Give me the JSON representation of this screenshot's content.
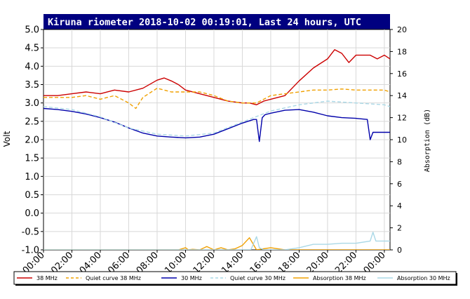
{
  "chart_data": {
    "type": "line",
    "title": "Kiruna riometer 2018-10-02 00:19:01, Last 24 hours, UTC",
    "ylabel": "Volt",
    "y2label": "Absorption (dB)",
    "xlabel": "",
    "ylim": [
      -1.0,
      5.0
    ],
    "y2lim": [
      0,
      20
    ],
    "xlim": [
      0,
      24.4
    ],
    "x_ticks": [
      "00:00",
      "02:00",
      "04:00",
      "06:00",
      "08:00",
      "10:00",
      "12:00",
      "14:00",
      "16:00",
      "18:00",
      "20:00",
      "22:00",
      "00:00"
    ],
    "y_ticks": [
      "-1.0",
      "-0.5",
      "0.0",
      "0.5",
      "1.0",
      "1.5",
      "2.0",
      "2.5",
      "3.0",
      "3.5",
      "4.0",
      "4.5",
      "5.0"
    ],
    "y2_ticks": [
      "0",
      "2",
      "4",
      "6",
      "8",
      "10",
      "12",
      "14",
      "16",
      "18",
      "20"
    ],
    "grid": true,
    "legend_position": "bottom",
    "series": [
      {
        "name": "38 MHz",
        "color": "#cc0000",
        "style": "solid",
        "axis": "left",
        "x": [
          0,
          1,
          2,
          3,
          4,
          5,
          6,
          7,
          8,
          8.5,
          9,
          9.5,
          10,
          11,
          12,
          13,
          14,
          14.5,
          15,
          15.5,
          16,
          17,
          18,
          19,
          20,
          20.5,
          21,
          21.5,
          22,
          23,
          23.5,
          24,
          24.4
        ],
        "y": [
          3.2,
          3.2,
          3.25,
          3.3,
          3.25,
          3.35,
          3.3,
          3.4,
          3.62,
          3.68,
          3.6,
          3.5,
          3.35,
          3.25,
          3.15,
          3.05,
          3.0,
          3.0,
          2.95,
          3.05,
          3.1,
          3.2,
          3.6,
          3.95,
          4.2,
          4.45,
          4.35,
          4.1,
          4.3,
          4.3,
          4.2,
          4.3,
          4.2
        ]
      },
      {
        "name": "Quiet curve 38 MHz",
        "color": "#f0a000",
        "style": "dashed",
        "axis": "left",
        "x": [
          0,
          1,
          2,
          3,
          4,
          5,
          6,
          6.5,
          7,
          8,
          9,
          10,
          11,
          12,
          13,
          14,
          15,
          16,
          17,
          18,
          19,
          20,
          21,
          22,
          23,
          24,
          24.4
        ],
        "y": [
          3.15,
          3.15,
          3.15,
          3.2,
          3.1,
          3.2,
          3.0,
          2.85,
          3.15,
          3.4,
          3.3,
          3.3,
          3.3,
          3.2,
          3.05,
          3.0,
          3.0,
          3.2,
          3.25,
          3.3,
          3.35,
          3.35,
          3.38,
          3.35,
          3.35,
          3.35,
          3.3
        ]
      },
      {
        "name": "30 MHz",
        "color": "#0000aa",
        "style": "solid",
        "axis": "left",
        "x": [
          0,
          1,
          2,
          3,
          4,
          5,
          6,
          7,
          8,
          9,
          10,
          11,
          12,
          13,
          14,
          14.8,
          15.0,
          15.2,
          15.4,
          15.6,
          16,
          17,
          18,
          19,
          20,
          21,
          22,
          22.8,
          23.0,
          23.2,
          23.6,
          24,
          24.2,
          24.4
        ],
        "y": [
          2.85,
          2.82,
          2.77,
          2.7,
          2.6,
          2.48,
          2.32,
          2.18,
          2.1,
          2.07,
          2.05,
          2.07,
          2.15,
          2.3,
          2.45,
          2.55,
          2.55,
          1.95,
          2.6,
          2.68,
          2.72,
          2.8,
          2.82,
          2.75,
          2.65,
          2.6,
          2.58,
          2.55,
          2.0,
          2.2,
          2.2,
          2.2,
          2.2,
          2.2
        ]
      },
      {
        "name": "Quiet curve 30 MHz",
        "color": "#aad8e6",
        "style": "dashed",
        "axis": "left",
        "x": [
          0,
          2,
          4,
          6,
          8,
          10,
          12,
          14,
          16,
          18,
          20,
          22,
          24,
          24.4
        ],
        "y": [
          2.9,
          2.82,
          2.62,
          2.32,
          2.15,
          2.1,
          2.18,
          2.48,
          2.78,
          2.95,
          3.05,
          3.0,
          2.95,
          2.9
        ]
      },
      {
        "name": "Absorption 38 MHz",
        "color": "#f0a000",
        "style": "solid",
        "axis": "right",
        "x": [
          0,
          9.5,
          10,
          10.2,
          10.5,
          11,
          11.5,
          12,
          12.5,
          13,
          13.5,
          14,
          14.5,
          15,
          16,
          17,
          18,
          24.4
        ],
        "y": [
          0,
          0,
          0.2,
          0,
          0.05,
          0,
          0.3,
          0,
          0.2,
          0,
          0.1,
          0.4,
          1.1,
          0,
          0.2,
          0,
          0,
          0
        ]
      },
      {
        "name": "Absorption 30 MHz",
        "color": "#aad8e6",
        "style": "solid",
        "axis": "right",
        "x": [
          0,
          14.6,
          15.0,
          15.2,
          15.5,
          16,
          17,
          18,
          19,
          20,
          21,
          22,
          23.0,
          23.2,
          23.4,
          24,
          24.4
        ],
        "y": [
          0,
          0,
          1.2,
          0.2,
          0,
          0,
          0,
          0.2,
          0.5,
          0.5,
          0.6,
          0.6,
          0.8,
          1.6,
          0.8,
          0.8,
          0.8
        ]
      }
    ]
  }
}
